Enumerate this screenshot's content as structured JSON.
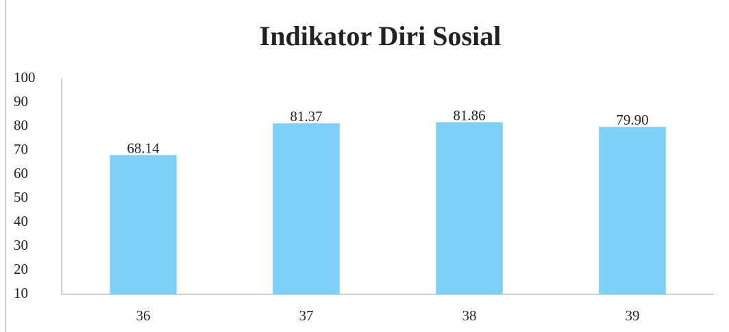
{
  "chart_data": {
    "type": "bar",
    "title": "Indikator Diri Sosial",
    "categories": [
      "36",
      "37",
      "38",
      "39"
    ],
    "values": [
      68.14,
      81.37,
      81.86,
      79.9
    ],
    "value_labels": [
      "68.14",
      "81.37",
      "81.86",
      "79.90"
    ],
    "color": "#7fd0f7",
    "ylim": [
      10,
      100
    ],
    "yticks": [
      10,
      20,
      30,
      40,
      50,
      60,
      70,
      80,
      90,
      100
    ],
    "grid": false
  }
}
